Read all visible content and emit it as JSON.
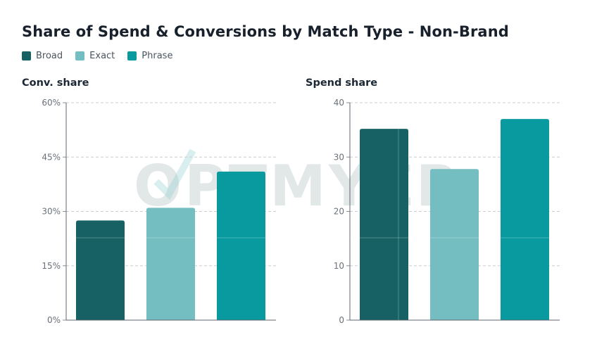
{
  "title": "Share of Spend & Conversions by Match Type - Non-Brand",
  "legend": [
    {
      "label": "Broad",
      "color": "#176165"
    },
    {
      "label": "Exact",
      "color": "#74bec1"
    },
    {
      "label": "Phrase",
      "color": "#099aa0"
    }
  ],
  "watermark": "OPTMYZR",
  "chart_data": [
    {
      "type": "bar",
      "title": "Conv. share",
      "categories": [
        "Broad",
        "Exact",
        "Phrase"
      ],
      "values": [
        27.5,
        31,
        41
      ],
      "ylim": [
        0,
        60
      ],
      "yticks": [
        0,
        15,
        30,
        45,
        60
      ],
      "ytick_labels": [
        "0%",
        "15%",
        "30%",
        "45%",
        "60%"
      ],
      "colors": [
        "#176165",
        "#74bec1",
        "#099aa0"
      ],
      "grid": true
    },
    {
      "type": "bar",
      "title": "Spend share",
      "categories": [
        "Broad",
        "Exact",
        "Phrase"
      ],
      "values": [
        35.2,
        27.8,
        37
      ],
      "ylim": [
        0,
        40
      ],
      "yticks": [
        0,
        10,
        20,
        30,
        40
      ],
      "ytick_labels": [
        "0",
        "10",
        "20",
        "30",
        "40"
      ],
      "colors": [
        "#176165",
        "#74bec1",
        "#099aa0"
      ],
      "grid": true
    }
  ]
}
